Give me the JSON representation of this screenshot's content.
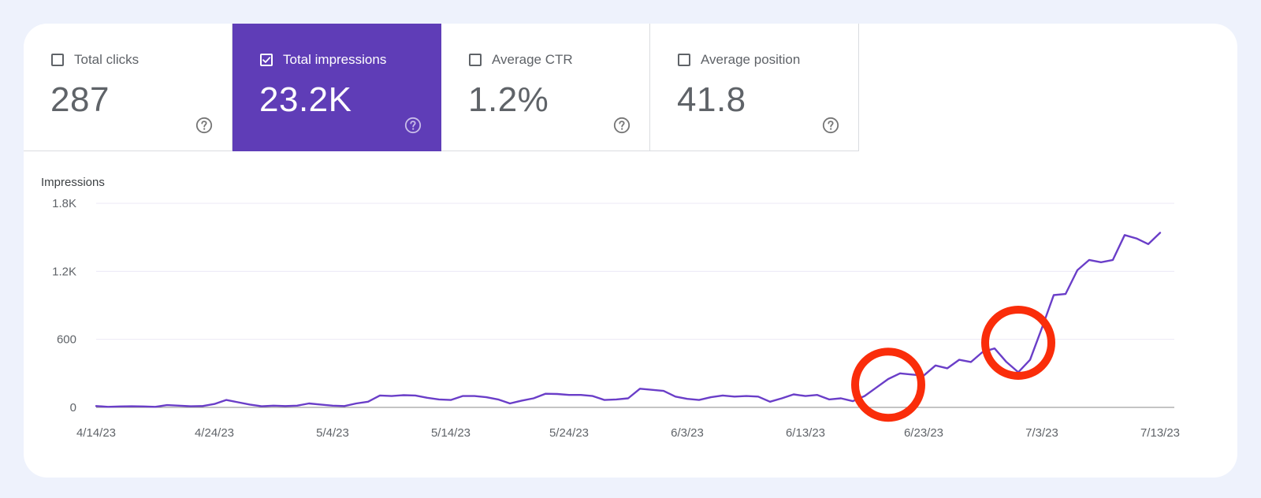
{
  "metrics": [
    {
      "label": "Total clicks",
      "value": "287",
      "checked": false
    },
    {
      "label": "Total impressions",
      "value": "23.2K",
      "checked": true
    },
    {
      "label": "Average CTR",
      "value": "1.2%",
      "checked": false
    },
    {
      "label": "Average position",
      "value": "41.8",
      "checked": false
    }
  ],
  "colors": {
    "accent": "#5f3db7",
    "line": "#6a3ec8",
    "annotation": "#fa2d0a",
    "background": "#eef2fc"
  },
  "chart_data": {
    "type": "line",
    "title": "",
    "xlabel": "",
    "ylabel": "Impressions",
    "ylim": [
      0,
      1800
    ],
    "yticks": [
      0,
      600,
      1200,
      1800
    ],
    "ytick_labels": [
      "0",
      "600",
      "1.2K",
      "1.8K"
    ],
    "x_tick_labels": [
      "4/14/23",
      "4/24/23",
      "5/4/23",
      "5/14/23",
      "5/24/23",
      "6/3/23",
      "6/13/23",
      "6/23/23",
      "7/3/23",
      "7/13/23"
    ],
    "grid": true,
    "series": [
      {
        "values": [
          12,
          5,
          8,
          10,
          8,
          5,
          20,
          15,
          10,
          12,
          30,
          65,
          45,
          25,
          10,
          15,
          12,
          15,
          35,
          25,
          15,
          12,
          35,
          50,
          105,
          100,
          108,
          105,
          85,
          70,
          65,
          100,
          100,
          90,
          70,
          35,
          60,
          80,
          120,
          118,
          110,
          110,
          100,
          65,
          70,
          80,
          165,
          155,
          145,
          95,
          75,
          65,
          90,
          105,
          95,
          100,
          95,
          50,
          80,
          115,
          100,
          110,
          70,
          80,
          55,
          100,
          175,
          250,
          300,
          290,
          280,
          370,
          345,
          420,
          400,
          490,
          520,
          400,
          310,
          420,
          700,
          990,
          1000,
          1210,
          1300,
          1280,
          1300,
          1520,
          1490,
          1440,
          1540
        ]
      }
    ],
    "annotations": [
      {
        "type": "circle",
        "x_index": 67,
        "y_value": 200
      },
      {
        "type": "circle",
        "x_index": 78,
        "y_value": 570
      }
    ]
  }
}
